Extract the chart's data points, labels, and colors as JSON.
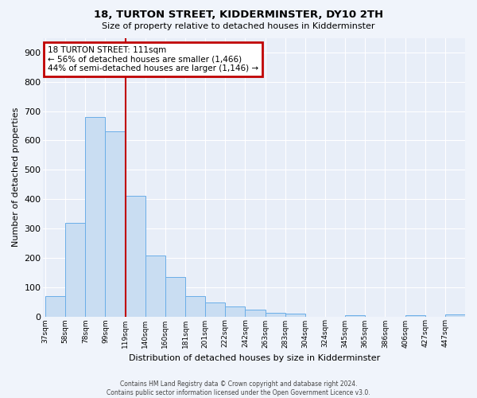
{
  "title": "18, TURTON STREET, KIDDERMINSTER, DY10 2TH",
  "subtitle": "Size of property relative to detached houses in Kidderminster",
  "xlabel": "Distribution of detached houses by size in Kidderminster",
  "ylabel": "Number of detached properties",
  "footer_line1": "Contains HM Land Registry data © Crown copyright and database right 2024.",
  "footer_line2": "Contains public sector information licensed under the Open Government Licence v3.0.",
  "bar_labels": [
    "37sqm",
    "58sqm",
    "78sqm",
    "99sqm",
    "119sqm",
    "140sqm",
    "160sqm",
    "181sqm",
    "201sqm",
    "222sqm",
    "242sqm",
    "263sqm",
    "283sqm",
    "304sqm",
    "324sqm",
    "345sqm",
    "365sqm",
    "386sqm",
    "406sqm",
    "427sqm",
    "447sqm"
  ],
  "bar_values": [
    70,
    320,
    680,
    630,
    410,
    208,
    135,
    68,
    48,
    33,
    22,
    12,
    10,
    0,
    0,
    5,
    0,
    0,
    5,
    0,
    7
  ],
  "bar_color": "#c9ddf2",
  "bar_edge_color": "#6aaee8",
  "annotation_box_text": "18 TURTON STREET: 111sqm\n← 56% of detached houses are smaller (1,466)\n44% of semi-detached houses are larger (1,146) →",
  "annotation_box_edge_color": "#c00000",
  "annotation_box_bg": "#ffffff",
  "vline_color": "#c00000",
  "ylim": [
    0,
    950
  ],
  "yticks": [
    0,
    100,
    200,
    300,
    400,
    500,
    600,
    700,
    800,
    900
  ],
  "fig_bg_color": "#f0f4fb",
  "plot_bg_color": "#e8eef8",
  "grid_color": "#ffffff"
}
